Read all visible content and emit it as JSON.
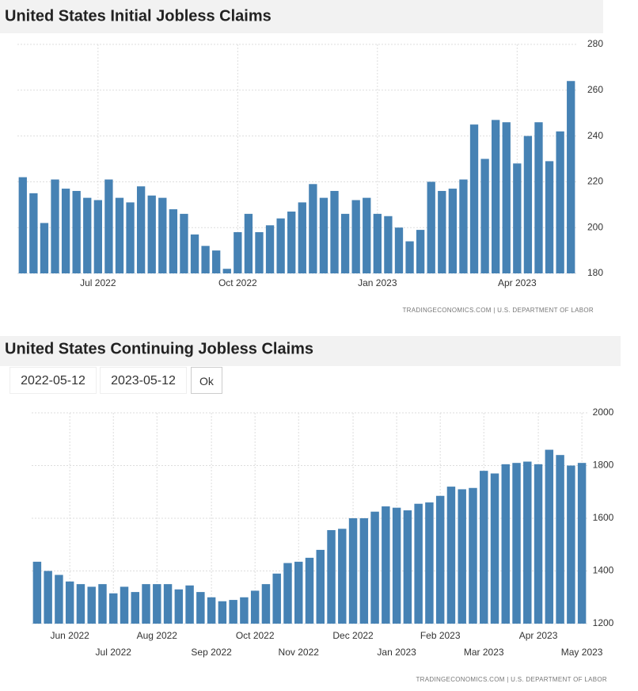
{
  "chart_data": [
    {
      "type": "bar",
      "title": "United States Initial Jobless Claims",
      "color": "#4682b4",
      "source": "TRADINGECONOMICS.COM | U.S. DEPARTMENT OF LABOR",
      "categories": [
        null,
        null,
        null,
        null,
        null,
        null,
        null,
        "Jul 2022",
        null,
        null,
        null,
        null,
        null,
        null,
        null,
        null,
        null,
        null,
        null,
        null,
        "Oct 2022",
        null,
        null,
        null,
        null,
        null,
        null,
        null,
        null,
        null,
        null,
        null,
        null,
        "Jan 2023",
        null,
        null,
        null,
        null,
        null,
        null,
        null,
        null,
        null,
        null,
        null,
        null,
        "Apr 2023",
        null,
        null,
        null,
        null,
        null
      ],
      "values": [
        222,
        215,
        202,
        221,
        217,
        216,
        213,
        212,
        221,
        213,
        211,
        218,
        214,
        213,
        208,
        206,
        197,
        192,
        190,
        182,
        198,
        206,
        198,
        201,
        204,
        207,
        211,
        219,
        213,
        216,
        206,
        212,
        213,
        206,
        205,
        200,
        194,
        199,
        220,
        216,
        217,
        221,
        245,
        230,
        247,
        246,
        228,
        240,
        246,
        229,
        242,
        264
      ],
      "ylim": [
        180,
        280
      ],
      "yticks": [
        180,
        200,
        220,
        240,
        260,
        280
      ],
      "grid": true
    },
    {
      "type": "bar",
      "title": "United States Continuing Jobless Claims",
      "color": "#4682b4",
      "source": "TRADINGECONOMICS.COM | U.S. DEPARTMENT OF LABOR",
      "categories": [
        null,
        null,
        null,
        "Jun 2022",
        null,
        null,
        null,
        "Jul 2022",
        null,
        null,
        null,
        "Aug 2022",
        null,
        null,
        null,
        null,
        "Sep 2022",
        null,
        null,
        null,
        "Oct 2022",
        null,
        null,
        null,
        "Nov 2022",
        null,
        null,
        null,
        null,
        "Dec 2022",
        null,
        null,
        null,
        "Jan 2023",
        null,
        null,
        null,
        "Feb 2023",
        null,
        null,
        null,
        "Mar 2023",
        null,
        null,
        null,
        null,
        "Apr 2023",
        null,
        null,
        null,
        "May 2023"
      ],
      "values": [
        1435,
        1400,
        1385,
        1360,
        1350,
        1340,
        1350,
        1315,
        1340,
        1320,
        1350,
        1350,
        1350,
        1330,
        1345,
        1320,
        1300,
        1285,
        1290,
        1300,
        1325,
        1350,
        1390,
        1430,
        1435,
        1450,
        1480,
        1555,
        1560,
        1600,
        1600,
        1625,
        1645,
        1640,
        1630,
        1655,
        1660,
        1685,
        1720,
        1710,
        1715,
        1780,
        1770,
        1805,
        1810,
        1815,
        1805,
        1860,
        1840,
        1800,
        1810
      ],
      "ylim": [
        1200,
        2000
      ],
      "yticks": [
        1200,
        1400,
        1600,
        1800,
        2000
      ],
      "grid": true
    }
  ],
  "date_range": {
    "start": "2022-05-12",
    "end": "2023-05-12",
    "button": "Ok"
  }
}
